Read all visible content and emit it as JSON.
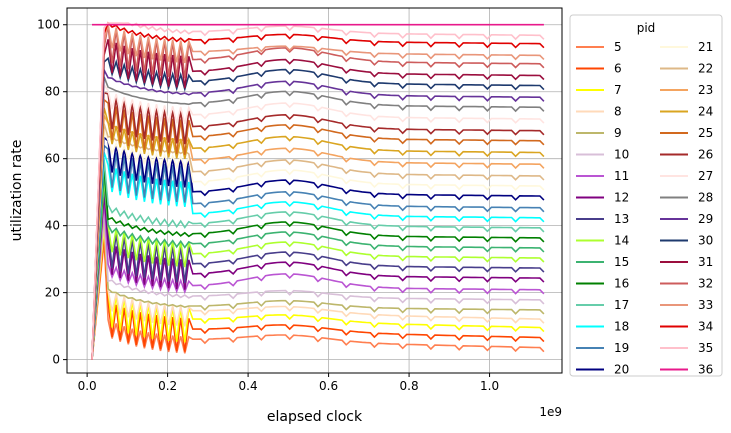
{
  "chart_data": {
    "type": "line",
    "title": "",
    "xlabel": "elapsed clock",
    "ylabel": "utilization rate",
    "x_offset_label": "1e9",
    "xlim": [
      -0.05,
      1.18
    ],
    "ylim": [
      -4,
      105
    ],
    "x_ticks": [
      0.0,
      0.2,
      0.4,
      0.6,
      0.8,
      1.0
    ],
    "x_tick_labels": [
      "0.0",
      "0.2",
      "0.4",
      "0.6",
      "0.8",
      "1.0"
    ],
    "y_ticks": [
      0,
      20,
      40,
      60,
      80,
      100
    ],
    "y_tick_labels": [
      "0",
      "20",
      "40",
      "60",
      "80",
      "100"
    ],
    "grid": true,
    "legend_title": "pid",
    "legend_position": "outside-right",
    "x_start": 0.012,
    "x_end": 1.135,
    "series": [
      {
        "name": "5",
        "color": "#ff7f50",
        "final": 3.5
      },
      {
        "name": "6",
        "color": "#ff4500",
        "final": 6.5
      },
      {
        "name": "7",
        "color": "#ffff00",
        "final": 9.5
      },
      {
        "name": "8",
        "color": "#ffdab9",
        "final": 12
      },
      {
        "name": "9",
        "color": "#bdb76b",
        "final": 15
      },
      {
        "name": "10",
        "color": "#d8bfd8",
        "final": 18
      },
      {
        "name": "11",
        "color": "#ba55d3",
        "final": 21
      },
      {
        "name": "12",
        "color": "#800080",
        "final": 24.5
      },
      {
        "name": "13",
        "color": "#483d8b",
        "final": 27.5
      },
      {
        "name": "14",
        "color": "#adff2f",
        "final": 30.5
      },
      {
        "name": "15",
        "color": "#3cb371",
        "final": 33.5
      },
      {
        "name": "16",
        "color": "#008000",
        "final": 36.5
      },
      {
        "name": "17",
        "color": "#66cdaa",
        "final": 39.5
      },
      {
        "name": "18",
        "color": "#00ffff",
        "final": 42.5
      },
      {
        "name": "19",
        "color": "#4682b4",
        "final": 45.5
      },
      {
        "name": "20",
        "color": "#000080",
        "final": 49
      },
      {
        "name": "21",
        "color": "#fff8dc",
        "final": 52
      },
      {
        "name": "22",
        "color": "#deb887",
        "final": 55
      },
      {
        "name": "23",
        "color": "#f4a460",
        "final": 58.5
      },
      {
        "name": "24",
        "color": "#daa520",
        "final": 62
      },
      {
        "name": "25",
        "color": "#d2691e",
        "final": 65.5
      },
      {
        "name": "26",
        "color": "#a52a2a",
        "final": 68.5
      },
      {
        "name": "27",
        "color": "#ffe4e1",
        "final": 72
      },
      {
        "name": "28",
        "color": "#808080",
        "final": 75.5
      },
      {
        "name": "29",
        "color": "#663399",
        "final": 78.5
      },
      {
        "name": "30",
        "color": "#1e3a6e",
        "final": 82
      },
      {
        "name": "31",
        "color": "#9b0e3e",
        "final": 85
      },
      {
        "name": "32",
        "color": "#cd5c5c",
        "final": 88.5
      },
      {
        "name": "33",
        "color": "#e9967a",
        "final": 91
      },
      {
        "name": "34",
        "color": "#e00000",
        "final": 94.5
      },
      {
        "name": "35",
        "color": "#ffc0cb",
        "final": 97
      },
      {
        "name": "36",
        "color": "#e8198b",
        "final": 100
      }
    ]
  }
}
